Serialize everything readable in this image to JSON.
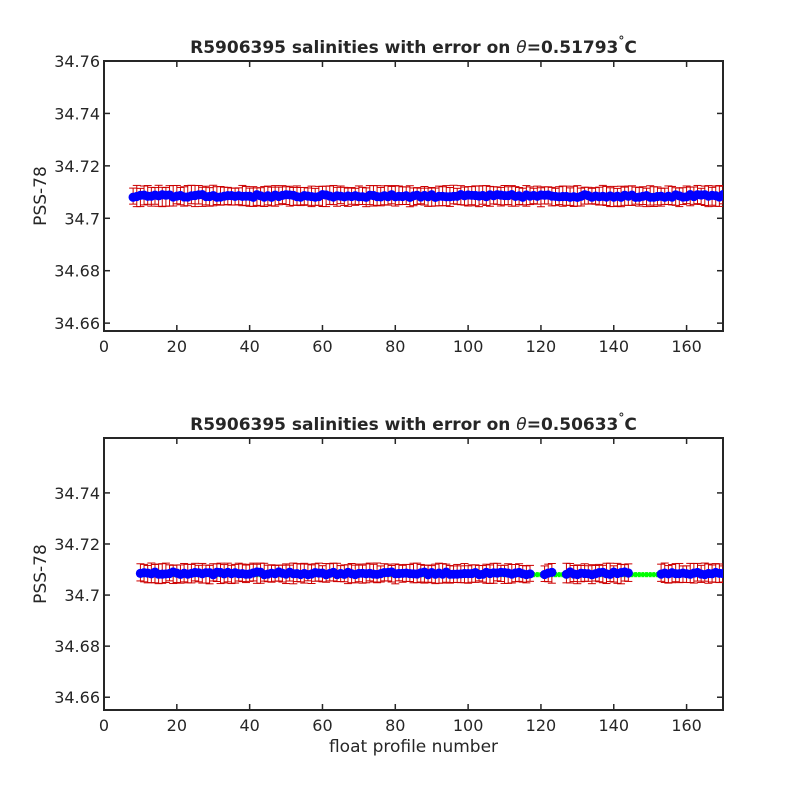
{
  "colors": {
    "background": "#ffffff",
    "axes": "#262626",
    "error_bars": "#cc0000",
    "points": "#0000ff",
    "mapped_line": "#00ff00"
  },
  "chart_data": [
    {
      "type": "errorbar",
      "title_main": "R5906395 salinities with error on ",
      "title_theta": "θ",
      "title_value": "=0.51793",
      "title_deg": "°",
      "title_unit": "C",
      "xlabel": "",
      "ylabel": "PSS-78",
      "xlim": [
        0,
        170
      ],
      "ylim": [
        34.657,
        34.76
      ],
      "xticks": [
        0,
        20,
        40,
        60,
        80,
        100,
        120,
        140,
        160
      ],
      "yticks": [
        34.66,
        34.68,
        34.7,
        34.72,
        34.74,
        34.76
      ],
      "ytick_labels": [
        "34.66",
        "34.68",
        "34.7",
        "34.72",
        "34.74",
        "34.76"
      ],
      "grid": false,
      "series": {
        "x_start": 8,
        "x_end": 170,
        "salinity": 34.7085,
        "error": 0.0035,
        "mapped_salinity": 34.7085,
        "mapped_error": 0.001
      }
    },
    {
      "type": "errorbar",
      "title_main": "R5906395 salinities with error on ",
      "title_theta": "θ",
      "title_value": "=0.50633",
      "title_deg": "°",
      "title_unit": "C",
      "xlabel": "float profile number",
      "ylabel": "PSS-78",
      "xlim": [
        0,
        170
      ],
      "ylim": [
        34.655,
        34.7615
      ],
      "xticks": [
        0,
        20,
        40,
        60,
        80,
        100,
        120,
        140,
        160
      ],
      "yticks": [
        34.66,
        34.68,
        34.7,
        34.72,
        34.74
      ],
      "ytick_labels": [
        "34.66",
        "34.68",
        "34.7",
        "34.72",
        "34.74"
      ],
      "grid": false,
      "series": {
        "x_start": 10,
        "x_end": 170,
        "salinity": 34.7085,
        "error": 0.0035,
        "mapped_salinity": 34.708,
        "mapped_error": 0.001,
        "gaps": [
          [
            118,
            120
          ],
          [
            124,
            126
          ],
          [
            145,
            152
          ]
        ]
      }
    }
  ]
}
